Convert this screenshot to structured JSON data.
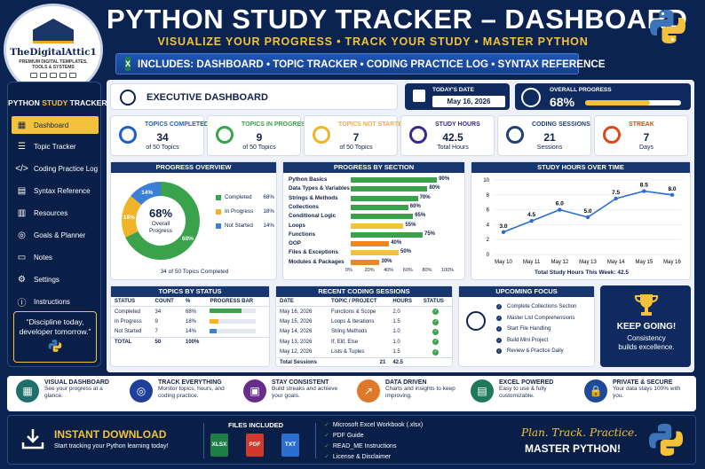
{
  "brand": {
    "name": "TheDigitalAttic1",
    "tagline": "PREMIUM DIGITAL TEMPLATES, TOOLS & SYSTEMS"
  },
  "header": {
    "title": "PYTHON STUDY TRACKER – DASHBOARD",
    "subtitle": "VISUALIZE YOUR PROGRESS • TRACK YOUR STUDY • MASTER PYTHON",
    "banner": "INCLUDES: DASHBOARD • TOPIC TRACKER • CODING PRACTICE LOG • SYNTAX REFERENCE"
  },
  "sidebar": {
    "title_a": "PYTHON",
    "title_b": "STUDY",
    "title_c": "TRACKER",
    "items": [
      {
        "label": "Dashboard",
        "icon": "dashboard-icon"
      },
      {
        "label": "Topic Tracker",
        "icon": "list-icon"
      },
      {
        "label": "Coding Practice Log",
        "icon": "code-icon"
      },
      {
        "label": "Syntax Reference",
        "icon": "document-icon"
      },
      {
        "label": "Resources",
        "icon": "book-icon"
      },
      {
        "label": "Goals & Planner",
        "icon": "target-icon"
      },
      {
        "label": "Notes",
        "icon": "notes-icon"
      },
      {
        "label": "Settings",
        "icon": "gear-icon"
      },
      {
        "label": "Instructions",
        "icon": "info-icon"
      }
    ],
    "quote": "“Discipline today, developer tomorrow.”"
  },
  "exec": {
    "title": "EXECUTIVE DASHBOARD",
    "date_label": "TODAY'S DATE",
    "date": "May 16, 2026",
    "overall_label": "OVERALL PROGRESS",
    "overall_value": "68%",
    "overall_fraction": 0.68
  },
  "kpis": [
    {
      "label": "TOPICS COMPLETED",
      "value": "34",
      "sub": "of 50 Topics",
      "color": "#1f5fbf"
    },
    {
      "label": "TOPICS IN PROGRESS",
      "value": "9",
      "sub": "of 50 Topics",
      "color": "#3aa24a"
    },
    {
      "label": "TOPICS NOT STARTED",
      "value": "7",
      "sub": "of 50 Topics",
      "color": "#f0b429"
    },
    {
      "label": "STUDY HOURS",
      "value": "42.5",
      "sub": "Total Hours",
      "color": "#3b2a8a"
    },
    {
      "label": "CODING SESSIONS",
      "value": "21",
      "sub": "Sessions",
      "color": "#1f3f7a"
    },
    {
      "label": "STREAK",
      "value": "7",
      "sub": "Days",
      "color": "#d9481f"
    }
  ],
  "progress_overview": {
    "title": "PROGRESS OVERVIEW",
    "center_value": "68%",
    "center_label": "Overall Progress",
    "footer": "34 of 50 Topics Completed"
  },
  "chart_data": [
    {
      "type": "pie",
      "title": "PROGRESS OVERVIEW",
      "slices": [
        {
          "name": "Completed",
          "value": 68,
          "label": "68%",
          "color": "#3aa24a"
        },
        {
          "name": "In Progress",
          "value": 18,
          "label": "18%",
          "color": "#f0b429"
        },
        {
          "name": "Not Started",
          "value": 14,
          "label": "14%",
          "color": "#3c7fd6"
        }
      ]
    },
    {
      "type": "bar",
      "title": "PROGRESS BY SECTION",
      "categories": [
        "Python Basics",
        "Data Types & Variables",
        "Strings & Methods",
        "Collections",
        "Conditional Logic",
        "Loops",
        "Functions",
        "OOP",
        "Files & Exceptions",
        "Modules & Packages"
      ],
      "values": [
        90,
        80,
        70,
        60,
        65,
        55,
        75,
        40,
        50,
        30
      ],
      "xticks": [
        "0%",
        "20%",
        "40%",
        "60%",
        "80%",
        "100%"
      ],
      "xlim": [
        0,
        100
      ]
    },
    {
      "type": "line",
      "title": "STUDY HOURS OVER TIME",
      "x": [
        "May 10",
        "May 11",
        "May 12",
        "May 13",
        "May 14",
        "May 15",
        "May 16"
      ],
      "y": [
        3.0,
        4.5,
        6.0,
        5.0,
        7.5,
        8.5,
        8.0
      ],
      "labels": [
        "3.0",
        "4.5",
        "6.0",
        "5.0",
        "7.5",
        "8.5",
        "8.0"
      ],
      "yticks": [
        "0",
        "2",
        "4",
        "6",
        "8",
        "10"
      ],
      "ylim": [
        0,
        10
      ],
      "footer_label": "Total Study Hours This Week:",
      "footer_value": "42.5"
    }
  ],
  "topics_status": {
    "title": "TOPICS BY STATUS",
    "headers": [
      "STATUS",
      "COUNT",
      "%",
      "PROGRESS BAR"
    ],
    "rows": [
      {
        "status": "Completed",
        "count": "34",
        "pct": "68%",
        "frac": 0.68,
        "color": "#3aa24a"
      },
      {
        "status": "In Progress",
        "count": "9",
        "pct": "18%",
        "frac": 0.18,
        "color": "#f0b429"
      },
      {
        "status": "Not Started",
        "count": "7",
        "pct": "14%",
        "frac": 0.14,
        "color": "#3c7fd6"
      }
    ],
    "total": {
      "status": "TOTAL",
      "count": "50",
      "pct": "100%"
    }
  },
  "sessions": {
    "title": "RECENT CODING SESSIONS",
    "headers": [
      "DATE",
      "TOPIC / PROJECT",
      "HOURS",
      "STATUS"
    ],
    "rows": [
      [
        "May 16, 2026",
        "Functions & Scope",
        "2.0"
      ],
      [
        "May 15, 2026",
        "Loops & Iterations",
        "1.5"
      ],
      [
        "May 14, 2026",
        "String Methods",
        "1.0"
      ],
      [
        "May 13, 2026",
        "If, Elif, Else",
        "1.0"
      ],
      [
        "May 12, 2026",
        "Lists & Tuples",
        "1.5"
      ]
    ],
    "total_label": "Total Sessions",
    "total_count": "21",
    "total_hours": "42.5"
  },
  "focus": {
    "title": "UPCOMING FOCUS",
    "items": [
      "Complete Collections Section",
      "Master List Comprehensions",
      "Start File Handling",
      "Build Mini Project",
      "Review & Practice Daily"
    ]
  },
  "keepgoing": {
    "title": "KEEP GOING!",
    "text": "Consistency builds excellence."
  },
  "features": [
    {
      "title": "VISUAL DASHBOARD",
      "desc": "See your progress at a glance.",
      "color": "#1f6f6a",
      "icon": "dashboard-icon"
    },
    {
      "title": "TRACK EVERYTHING",
      "desc": "Monitor topics, hours, and coding practice.",
      "color": "#1f3f9a",
      "icon": "target-icon"
    },
    {
      "title": "STAY CONSISTENT",
      "desc": "Build streaks and achieve your goals.",
      "color": "#6a2c8a",
      "icon": "calendar-icon"
    },
    {
      "title": "DATA DRIVEN",
      "desc": "Charts and insights to keep improving.",
      "color": "#e0782a",
      "icon": "chart-icon"
    },
    {
      "title": "EXCEL POWERED",
      "desc": "Easy to use & fully customizable.",
      "color": "#1f7a5a",
      "icon": "spreadsheet-icon"
    },
    {
      "title": "PRIVATE & SECURE",
      "desc": "Your data stays 100% with you.",
      "color": "#1f4a9a",
      "icon": "lock-icon"
    }
  ],
  "footer": {
    "download_title": "INSTANT DOWNLOAD",
    "download_text": "Start tracking your Python learning today!",
    "files_title": "FILES INCLUDED",
    "files": [
      {
        "label": "XLSX",
        "color": "#1e7e45"
      },
      {
        "label": "PDF",
        "color": "#d0392b"
      },
      {
        "label": "TXT",
        "color": "#2a6fd0"
      }
    ],
    "list": [
      "Microsoft Excel Workbook (.xlsx)",
      "PDF Guide",
      "READ_ME Instructions",
      "License & Disclaimer"
    ],
    "slogan": "Plan. Track. Practice.",
    "cta": "MASTER PYTHON!"
  }
}
